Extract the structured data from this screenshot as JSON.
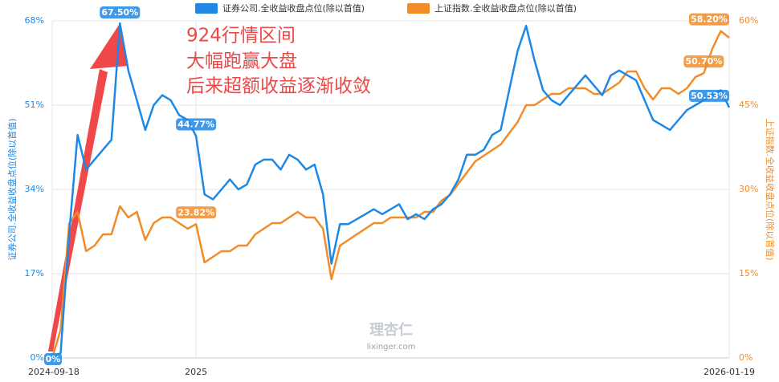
{
  "chart_data": {
    "type": "line",
    "annotations": [
      "924行情区间",
      "大幅跑赢大盘",
      "后来超额收益逐渐收敛"
    ],
    "watermark": "理杏仁",
    "watermark_url": "lixinger.com",
    "ylabel": "证券公司.全收益收盘点位(除以首值)",
    "y2label": "上证指数.全收益收盘点位(除以首值)",
    "categories": [
      "2024-09-18",
      null,
      null,
      null,
      null,
      null,
      null,
      null,
      null,
      null,
      null,
      null,
      null,
      null,
      null,
      null,
      null,
      "2025",
      null,
      null,
      null,
      null,
      null,
      null,
      null,
      null,
      null,
      null,
      null,
      null,
      null,
      null,
      null,
      null,
      null,
      null,
      null,
      null,
      null,
      null,
      null,
      null,
      null,
      null,
      null,
      null,
      null,
      null,
      null,
      null,
      null,
      null,
      null,
      null,
      null,
      null,
      null,
      null,
      null,
      null,
      null,
      null,
      null,
      null,
      null,
      null,
      null,
      null,
      null,
      null,
      null,
      null,
      null,
      null,
      null,
      null,
      null,
      null,
      null,
      null,
      "2026-01-19"
    ],
    "ylim": [
      0,
      68
    ],
    "yticks": [
      {
        "value": 0,
        "label": "0%"
      },
      {
        "value": 17,
        "label": "17%"
      },
      {
        "value": 34,
        "label": "34%"
      },
      {
        "value": 51,
        "label": "51%"
      },
      {
        "value": 68,
        "label": "68%"
      }
    ],
    "y2lim": [
      0,
      60
    ],
    "y2ticks": [
      {
        "value": 0,
        "label": "0%"
      },
      {
        "value": 15,
        "label": "15%"
      },
      {
        "value": 30,
        "label": "30%"
      },
      {
        "value": 45,
        "label": "45%"
      },
      {
        "value": 60,
        "label": "60%"
      }
    ],
    "grid": true,
    "series": [
      {
        "name": "证券公司.全收益收盘点位(除以首值)",
        "color": "#1e88e5",
        "values": [
          0,
          1,
          25,
          45,
          38,
          40,
          42,
          44,
          67.5,
          58,
          52,
          46,
          51,
          53,
          52,
          49,
          48,
          44.77,
          33,
          32,
          34,
          36,
          34,
          35,
          39,
          40,
          40,
          38,
          41,
          40,
          38,
          39,
          33,
          19,
          27,
          27,
          28,
          29,
          30,
          29,
          30,
          31,
          28,
          29,
          28,
          30,
          31,
          33,
          36,
          41,
          41,
          42,
          45,
          46,
          54,
          62,
          67,
          60,
          54,
          52,
          51,
          53,
          55,
          57,
          55,
          53,
          57,
          58,
          57,
          56,
          52,
          48,
          47,
          46,
          48,
          50,
          51,
          52,
          53,
          54,
          50.53
        ],
        "value_labels": [
          "0%",
          null,
          null,
          null,
          null,
          null,
          null,
          null,
          "67.50%",
          null,
          null,
          null,
          null,
          null,
          null,
          null,
          null,
          "44.77%",
          null,
          null,
          null,
          null,
          null,
          null,
          null,
          null,
          null,
          null,
          null,
          null,
          null,
          null,
          null,
          null,
          null,
          null,
          null,
          null,
          null,
          null,
          null,
          null,
          null,
          null,
          null,
          null,
          null,
          null,
          null,
          null,
          null,
          null,
          null,
          null,
          null,
          null,
          null,
          null,
          null,
          null,
          null,
          null,
          null,
          null,
          null,
          null,
          null,
          null,
          null,
          null,
          null,
          null,
          null,
          null,
          null,
          null,
          null,
          null,
          null,
          null,
          "50.53%"
        ]
      },
      {
        "name": "上证指数.全收益收盘点位(除以首值)",
        "color": "#f28c28",
        "axis": "y2",
        "values": [
          0,
          5,
          24,
          26,
          19,
          20,
          22,
          22,
          27,
          25,
          26,
          21,
          24,
          25,
          25,
          24,
          23,
          23.82,
          17,
          18,
          19,
          19,
          20,
          20,
          22,
          23,
          24,
          24,
          25,
          26,
          25,
          25,
          23,
          14,
          20,
          21,
          22,
          23,
          24,
          24,
          25,
          25,
          25,
          25,
          26,
          26,
          28,
          29,
          31,
          33,
          35,
          36,
          37,
          38,
          40,
          42,
          45,
          45,
          46,
          47,
          47,
          48,
          48,
          48,
          47,
          47,
          48,
          49,
          51,
          51,
          48,
          46,
          48,
          48,
          47,
          48,
          50,
          50.7,
          55,
          58.2,
          57
        ],
        "value_labels": [
          null,
          null,
          null,
          null,
          null,
          null,
          null,
          null,
          null,
          null,
          null,
          null,
          null,
          null,
          null,
          null,
          null,
          "23.82%",
          null,
          null,
          null,
          null,
          null,
          null,
          null,
          null,
          null,
          null,
          null,
          null,
          null,
          null,
          null,
          null,
          null,
          null,
          null,
          null,
          null,
          null,
          null,
          null,
          null,
          null,
          null,
          null,
          null,
          null,
          null,
          null,
          null,
          null,
          null,
          null,
          null,
          null,
          null,
          null,
          null,
          null,
          null,
          null,
          null,
          null,
          null,
          null,
          null,
          null,
          null,
          null,
          null,
          null,
          null,
          null,
          null,
          null,
          null,
          "50.70%",
          null,
          "58.20%",
          null
        ]
      }
    ]
  }
}
